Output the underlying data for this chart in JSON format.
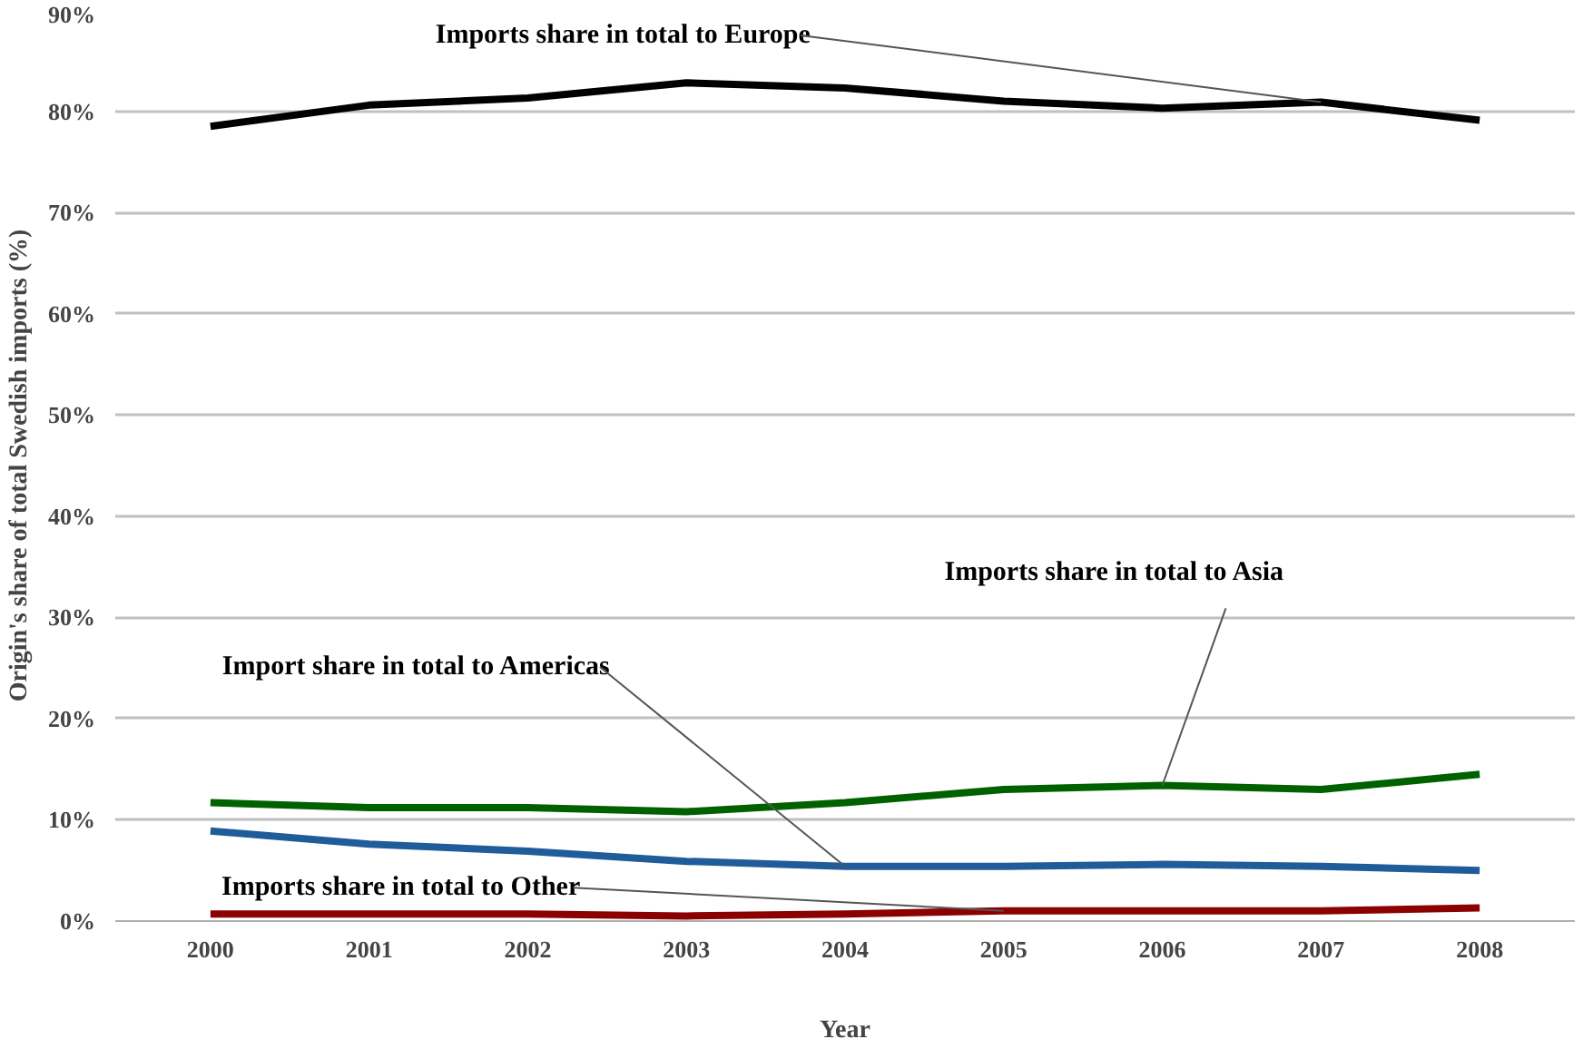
{
  "chart_data": {
    "type": "line",
    "xlabel": "Year",
    "ylabel": "Origin's share of total Swedish imports (%)",
    "categories": [
      "2000",
      "2001",
      "2002",
      "2003",
      "2004",
      "2005",
      "2006",
      "2007",
      "2008"
    ],
    "series": [
      {
        "color": "#000000",
        "values": [
          78.5,
          80.6,
          81.3,
          82.8,
          82.3,
          81.0,
          80.3,
          80.9,
          79.1
        ]
      },
      {
        "color": "#006100",
        "values": [
          11.7,
          11.2,
          11.2,
          10.8,
          11.7,
          13.0,
          13.4,
          13.0,
          14.5
        ]
      },
      {
        "color": "#1f5c99",
        "values": [
          8.9,
          7.6,
          6.9,
          5.9,
          5.4,
          5.4,
          5.6,
          5.4,
          5.0
        ]
      },
      {
        "color": "#8b0000",
        "values": [
          0.7,
          0.7,
          0.7,
          0.5,
          0.7,
          1.0,
          1.0,
          1.0,
          1.3
        ]
      }
    ],
    "annotations": [
      {
        "text": "Imports share in total to Europe",
        "x": "2007",
        "y": 80.9
      },
      {
        "text": "Imports share in total to Asia",
        "x": "2006",
        "y": 13.4
      },
      {
        "text": "Import share in total to Americas",
        "x": "2004",
        "y": 5.4
      },
      {
        "text": "Imports share in total to Other",
        "x": "2005",
        "y": 1.0
      }
    ],
    "ylim": [
      0,
      90
    ],
    "yticks": [
      {
        "value": 0,
        "label": "0%"
      },
      {
        "value": 10,
        "label": "10%"
      },
      {
        "value": 20,
        "label": "20%"
      },
      {
        "value": 30,
        "label": "30%"
      },
      {
        "value": 40,
        "label": "40%"
      },
      {
        "value": 50,
        "label": "50%"
      },
      {
        "value": 60,
        "label": "60%"
      },
      {
        "value": 70,
        "label": "70%"
      },
      {
        "value": 80,
        "label": "80%"
      },
      {
        "value": 90,
        "label": "90%"
      }
    ],
    "grid": "y",
    "marker": "none",
    "line_style": "solid"
  }
}
